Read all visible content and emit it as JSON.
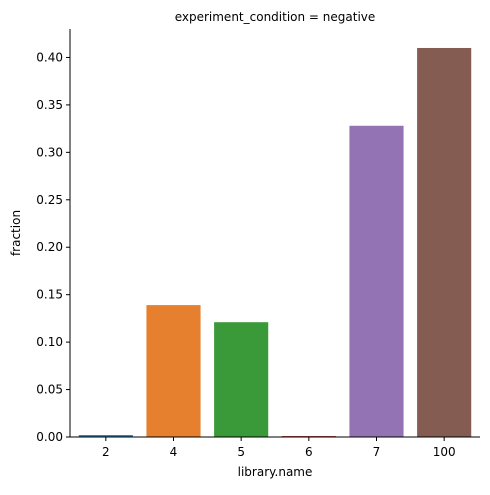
{
  "chart_data": {
    "type": "bar",
    "title": "experiment_condition = negative",
    "xlabel": "library.name",
    "ylabel": "fraction",
    "categories": [
      "2",
      "4",
      "5",
      "6",
      "7",
      "100"
    ],
    "values": [
      0.002,
      0.139,
      0.121,
      0.001,
      0.328,
      0.41
    ],
    "colors": [
      "#1f77b4",
      "#e6802e",
      "#3a9a3a",
      "#c03a36",
      "#9373b3",
      "#845c51"
    ],
    "ylim": [
      0,
      0.43
    ],
    "yticks": [
      0,
      0.05,
      0.1,
      0.15,
      0.2,
      0.25,
      0.3,
      0.35,
      0.4
    ],
    "ytick_labels": [
      "0.00",
      "0.05",
      "0.10",
      "0.15",
      "0.20",
      "0.25",
      "0.30",
      "0.35",
      "0.40"
    ],
    "grid": false,
    "legend": "none"
  }
}
